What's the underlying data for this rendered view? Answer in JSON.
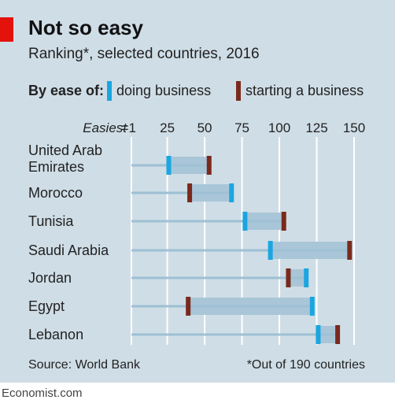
{
  "header": {
    "title": "Not so easy",
    "subtitle": "Ranking*, selected countries, 2016"
  },
  "legend": {
    "lead": "By ease of:",
    "items": [
      {
        "label": "doing business",
        "color": "#1aa6e0"
      },
      {
        "label": "starting a business",
        "color": "#7a2a1c"
      }
    ]
  },
  "footer": {
    "source": "Source: World Bank",
    "note": "*Out of 190 countries"
  },
  "brand": "Economist.com",
  "colors": {
    "panel": "#cfdde6",
    "accent_red": "#e3120b",
    "line": "#9ec0d4",
    "band": "#a9c6d8",
    "grid": "#ffffff"
  },
  "chart_data": {
    "type": "range-dot",
    "axis_prefix": "Easiest",
    "xlim": [
      1,
      150
    ],
    "ticks": [
      {
        "value": 1,
        "label": "=1"
      },
      {
        "value": 25,
        "label": "25"
      },
      {
        "value": 50,
        "label": "50"
      },
      {
        "value": 75,
        "label": "75"
      },
      {
        "value": 100,
        "label": "100"
      },
      {
        "value": 125,
        "label": "125"
      },
      {
        "value": 150,
        "label": "150"
      }
    ],
    "series": [
      {
        "name": "doing business",
        "color": "#1aa6e0"
      },
      {
        "name": "starting a business",
        "color": "#7a2a1c"
      }
    ],
    "rows": [
      {
        "country": [
          "United Arab",
          "Emirates"
        ],
        "doing_business": 26,
        "starting_business": 53
      },
      {
        "country": [
          "Morocco"
        ],
        "doing_business": 68,
        "starting_business": 40
      },
      {
        "country": [
          "Tunisia"
        ],
        "doing_business": 77,
        "starting_business": 103
      },
      {
        "country": [
          "Saudi Arabia"
        ],
        "doing_business": 94,
        "starting_business": 147
      },
      {
        "country": [
          "Jordan"
        ],
        "doing_business": 118,
        "starting_business": 106
      },
      {
        "country": [
          "Egypt"
        ],
        "doing_business": 122,
        "starting_business": 39
      },
      {
        "country": [
          "Lebanon"
        ],
        "doing_business": 126,
        "starting_business": 139
      }
    ]
  }
}
